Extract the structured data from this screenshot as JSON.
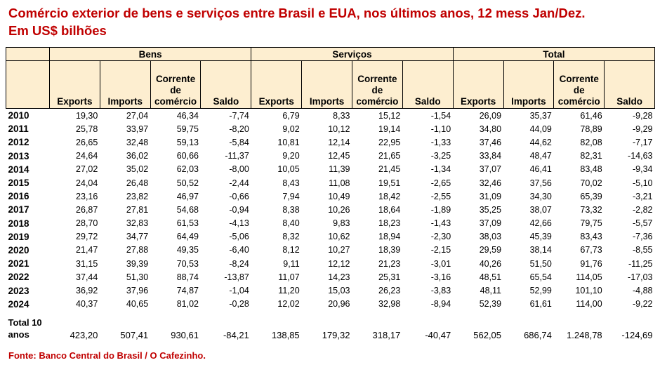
{
  "title": {
    "line1": "Comércio exterior de bens e serviços entre Brasil e EUA, nos últimos anos, 12 mess Jan/Dez.",
    "line2": "Em US$ bilhões"
  },
  "groups": [
    "Bens",
    "Serviços",
    "Total"
  ],
  "columns": {
    "exports": "Exports",
    "imports": "Imports",
    "corrente_l1": "Corrente",
    "corrente_l2": "de",
    "corrente_l3": "comércio",
    "saldo": "Saldo"
  },
  "rows": [
    {
      "year": "2010",
      "b": [
        "19,30",
        "27,04",
        "46,34",
        "-7,74"
      ],
      "s": [
        "6,79",
        "8,33",
        "15,12",
        "-1,54"
      ],
      "t": [
        "26,09",
        "35,37",
        "61,46",
        "-9,28"
      ]
    },
    {
      "year": "2011",
      "b": [
        "25,78",
        "33,97",
        "59,75",
        "-8,20"
      ],
      "s": [
        "9,02",
        "10,12",
        "19,14",
        "-1,10"
      ],
      "t": [
        "34,80",
        "44,09",
        "78,89",
        "-9,29"
      ]
    },
    {
      "year": "2012",
      "b": [
        "26,65",
        "32,48",
        "59,13",
        "-5,84"
      ],
      "s": [
        "10,81",
        "12,14",
        "22,95",
        "-1,33"
      ],
      "t": [
        "37,46",
        "44,62",
        "82,08",
        "-7,17"
      ]
    },
    {
      "year": "2013",
      "b": [
        "24,64",
        "36,02",
        "60,66",
        "-11,37"
      ],
      "s": [
        "9,20",
        "12,45",
        "21,65",
        "-3,25"
      ],
      "t": [
        "33,84",
        "48,47",
        "82,31",
        "-14,63"
      ]
    },
    {
      "year": "2014",
      "b": [
        "27,02",
        "35,02",
        "62,03",
        "-8,00"
      ],
      "s": [
        "10,05",
        "11,39",
        "21,45",
        "-1,34"
      ],
      "t": [
        "37,07",
        "46,41",
        "83,48",
        "-9,34"
      ]
    },
    {
      "year": "2015",
      "b": [
        "24,04",
        "26,48",
        "50,52",
        "-2,44"
      ],
      "s": [
        "8,43",
        "11,08",
        "19,51",
        "-2,65"
      ],
      "t": [
        "32,46",
        "37,56",
        "70,02",
        "-5,10"
      ]
    },
    {
      "year": "2016",
      "b": [
        "23,16",
        "23,82",
        "46,97",
        "-0,66"
      ],
      "s": [
        "7,94",
        "10,49",
        "18,42",
        "-2,55"
      ],
      "t": [
        "31,09",
        "34,30",
        "65,39",
        "-3,21"
      ]
    },
    {
      "year": "2017",
      "b": [
        "26,87",
        "27,81",
        "54,68",
        "-0,94"
      ],
      "s": [
        "8,38",
        "10,26",
        "18,64",
        "-1,89"
      ],
      "t": [
        "35,25",
        "38,07",
        "73,32",
        "-2,82"
      ]
    },
    {
      "year": "2018",
      "b": [
        "28,70",
        "32,83",
        "61,53",
        "-4,13"
      ],
      "s": [
        "8,40",
        "9,83",
        "18,23",
        "-1,43"
      ],
      "t": [
        "37,09",
        "42,66",
        "79,75",
        "-5,57"
      ]
    },
    {
      "year": "2019",
      "b": [
        "29,72",
        "34,77",
        "64,49",
        "-5,06"
      ],
      "s": [
        "8,32",
        "10,62",
        "18,94",
        "-2,30"
      ],
      "t": [
        "38,03",
        "45,39",
        "83,43",
        "-7,36"
      ]
    },
    {
      "year": "2020",
      "b": [
        "21,47",
        "27,88",
        "49,35",
        "-6,40"
      ],
      "s": [
        "8,12",
        "10,27",
        "18,39",
        "-2,15"
      ],
      "t": [
        "29,59",
        "38,14",
        "67,73",
        "-8,55"
      ]
    },
    {
      "year": "2021",
      "b": [
        "31,15",
        "39,39",
        "70,53",
        "-8,24"
      ],
      "s": [
        "9,11",
        "12,12",
        "21,23",
        "-3,01"
      ],
      "t": [
        "40,26",
        "51,50",
        "91,76",
        "-11,25"
      ]
    },
    {
      "year": "2022",
      "b": [
        "37,44",
        "51,30",
        "88,74",
        "-13,87"
      ],
      "s": [
        "11,07",
        "14,23",
        "25,31",
        "-3,16"
      ],
      "t": [
        "48,51",
        "65,54",
        "114,05",
        "-17,03"
      ]
    },
    {
      "year": "2023",
      "b": [
        "36,92",
        "37,96",
        "74,87",
        "-1,04"
      ],
      "s": [
        "11,20",
        "15,03",
        "26,23",
        "-3,83"
      ],
      "t": [
        "48,11",
        "52,99",
        "101,10",
        "-4,88"
      ]
    },
    {
      "year": "2024",
      "b": [
        "40,37",
        "40,65",
        "81,02",
        "-0,28"
      ],
      "s": [
        "12,02",
        "20,96",
        "32,98",
        "-8,94"
      ],
      "t": [
        "52,39",
        "61,61",
        "114,00",
        "-9,22"
      ]
    }
  ],
  "total": {
    "label_l1": "Total 10",
    "label_l2": "anos",
    "b": [
      "423,20",
      "507,41",
      "930,61",
      "-84,21"
    ],
    "s": [
      "138,85",
      "179,32",
      "318,17",
      "-40,47"
    ],
    "t": [
      "562,05",
      "686,74",
      "1.248,78",
      "-124,69"
    ]
  },
  "source": "Fonte: Banco Central do Brasil / O Cafezinho."
}
